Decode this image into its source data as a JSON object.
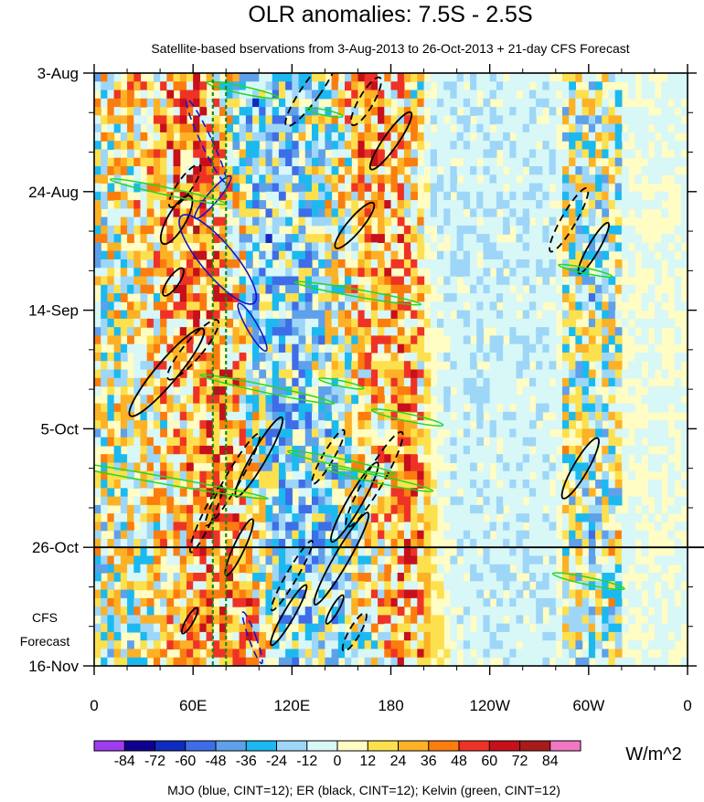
{
  "chart_data": {
    "type": "heatmap",
    "title": "OLR anomalies: 7.5S - 2.5S",
    "subtitle": "Satellite-based bservations from 3-Aug-2013 to 26-Oct-2013 + 21-day CFS Forecast",
    "x_ticks": [
      "0",
      "60E",
      "120E",
      "180",
      "120W",
      "60W",
      "0"
    ],
    "x_tick_lon": [
      0,
      60,
      120,
      180,
      240,
      300,
      360
    ],
    "xlim": [
      0,
      360
    ],
    "y_ticks": [
      "3-Aug",
      "24-Aug",
      "14-Sep",
      "5-Oct",
      "26-Oct",
      "16-Nov"
    ],
    "y_tick_day": [
      0,
      21,
      42,
      63,
      84,
      105
    ],
    "ylim_days": [
      0,
      105
    ],
    "forecast_start_label": "26-Oct",
    "forecast_label": [
      "CFS",
      "Forecast"
    ],
    "colorbar": {
      "ticks": [
        "-84",
        "-72",
        "-60",
        "-48",
        "-36",
        "-24",
        "-12",
        "0",
        "12",
        "24",
        "36",
        "48",
        "60",
        "72",
        "84"
      ],
      "colors": [
        "#9f3cf0",
        "#10008f",
        "#0f2bc0",
        "#3e6de8",
        "#5fa0ea",
        "#1cb9f0",
        "#9ed6f8",
        "#d8f7f7",
        "#fffcc4",
        "#fde04e",
        "#fcb126",
        "#fb7d0e",
        "#ee3326",
        "#c6101b",
        "#a71b1b",
        "#f277c3"
      ],
      "units": "W/m^2"
    },
    "footnote": "MJO (blue, CINT=12); ER (black, CINT=12); Kelvin (green, CINT=12)",
    "contours": {
      "mjo": {
        "name": "MJO",
        "color": "#1414c8",
        "cint": 12
      },
      "er": {
        "name": "ER",
        "color": "#000000",
        "cint": 12
      },
      "kelvin": {
        "name": "Kelvin",
        "color": "#22d822",
        "cint": 12
      },
      "reference_lines_lon": [
        72,
        80
      ],
      "reference_line_color": "#1a8a1a"
    }
  }
}
